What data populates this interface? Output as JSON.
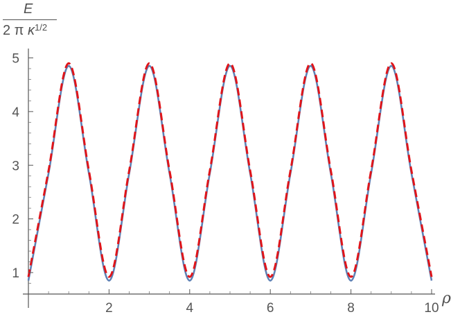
{
  "chart_data": {
    "type": "line",
    "title": "",
    "ylabel": {
      "numerator": "E",
      "denominator_prefix": "2 π ",
      "denominator_symbol": "κ",
      "denominator_exponent": "1/2"
    },
    "xlabel": "ρ",
    "xlim": [
      0,
      10
    ],
    "ylim": [
      0.6,
      5.2
    ],
    "xticks": [
      2,
      4,
      6,
      8,
      10
    ],
    "yticks": [
      1,
      2,
      3,
      4,
      5
    ],
    "grid": false,
    "legend": "none",
    "series": [
      {
        "color": "#5e81b5",
        "style": "solid",
        "x": [
          0.0,
          0.5,
          1.0,
          1.5,
          2.0,
          2.5,
          3.0,
          3.5,
          4.0,
          4.5,
          5.0,
          5.5,
          6.0,
          6.5,
          7.0,
          7.5,
          8.0,
          8.5,
          9.0,
          9.5,
          10.0
        ],
        "y": [
          0.85,
          2.85,
          4.85,
          2.85,
          0.85,
          2.85,
          4.85,
          2.85,
          0.85,
          2.85,
          4.85,
          2.85,
          0.85,
          2.85,
          4.85,
          2.85,
          0.85,
          2.85,
          4.85,
          2.85,
          0.85
        ]
      },
      {
        "color": "#e0151a",
        "style": "dashed",
        "x": [
          0.0,
          0.5,
          1.0,
          1.5,
          2.0,
          2.5,
          3.0,
          3.5,
          4.0,
          4.5,
          5.0,
          5.5,
          6.0,
          6.5,
          7.0,
          7.5,
          8.0,
          8.5,
          9.0,
          9.5,
          10.0
        ],
        "y": [
          0.92,
          2.9,
          4.9,
          2.9,
          0.92,
          2.9,
          4.9,
          2.9,
          0.92,
          2.9,
          4.9,
          2.9,
          0.92,
          2.9,
          4.9,
          2.9,
          0.92,
          2.9,
          4.9,
          2.9,
          0.92
        ]
      }
    ]
  }
}
